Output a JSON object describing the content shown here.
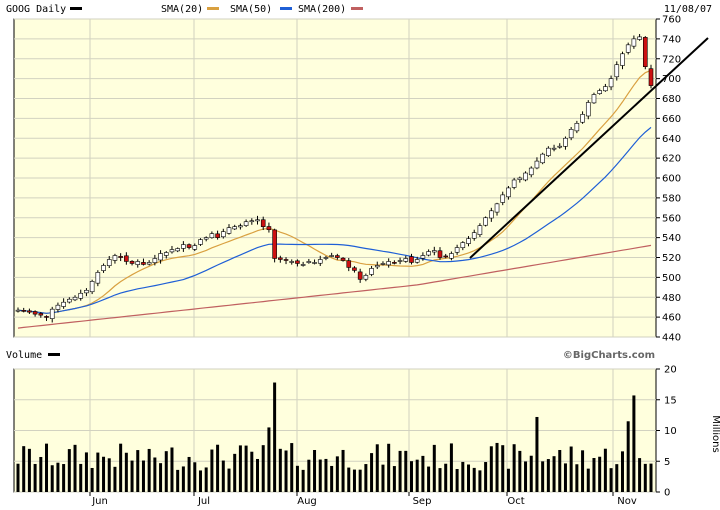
{
  "header": {
    "ticker_label": "GOOG Daily",
    "sma20_label": "SMA(20)",
    "sma50_label": "SMA(50)",
    "sma200_label": "SMA(200)",
    "date": "11/08/07"
  },
  "volume_panel": {
    "label": "Volume",
    "unit_label": "Millions",
    "watermark": "©BigCharts.com"
  },
  "colors": {
    "background": "#ffffdd",
    "price_line": "#000000",
    "sma20": "#d9a040",
    "sma50": "#1f5fd6",
    "sma200": "#c06060",
    "down_candle": "#cc1111",
    "up_candle": "#ffffff",
    "grid": "#d2d2c0"
  },
  "chart_data": {
    "type": "candlestick",
    "x_months": [
      "Jun",
      "Jul",
      "Aug",
      "Sep",
      "Oct",
      "Nov"
    ],
    "price_axis": {
      "ylim": [
        440,
        760
      ],
      "ticks": [
        440,
        460,
        480,
        500,
        520,
        540,
        560,
        580,
        600,
        620,
        640,
        660,
        680,
        700,
        720,
        740,
        760
      ]
    },
    "volume_axis": {
      "ylim": [
        0,
        20
      ],
      "ticks": [
        0,
        5,
        10,
        15,
        20
      ]
    },
    "series": [
      {
        "name": "SMA(20)"
      },
      {
        "name": "SMA(50)"
      },
      {
        "name": "SMA(200)"
      }
    ],
    "closes": [
      467,
      466,
      465,
      463,
      462,
      460,
      468,
      472,
      475,
      478,
      480,
      484,
      487,
      496,
      505,
      512,
      518,
      522,
      520,
      516,
      514,
      516,
      513,
      515,
      519,
      524,
      525,
      528,
      529,
      533,
      530,
      532,
      538,
      540,
      544,
      540,
      546,
      550,
      551,
      552,
      556,
      557,
      558,
      551,
      548,
      519,
      518,
      517,
      516,
      514,
      513,
      516,
      515,
      518,
      520,
      522,
      520,
      517,
      510,
      507,
      498,
      502,
      509,
      512,
      514,
      516,
      515,
      517,
      519,
      515,
      518,
      522,
      526,
      527,
      520,
      521,
      524,
      530,
      535,
      539,
      545,
      552,
      560,
      567,
      574,
      583,
      590,
      598,
      600,
      605,
      610,
      617,
      624,
      630,
      630,
      632,
      640,
      649,
      655,
      664,
      676,
      684,
      688,
      692,
      700,
      714,
      725,
      734,
      740,
      742,
      712,
      693
    ]
  }
}
